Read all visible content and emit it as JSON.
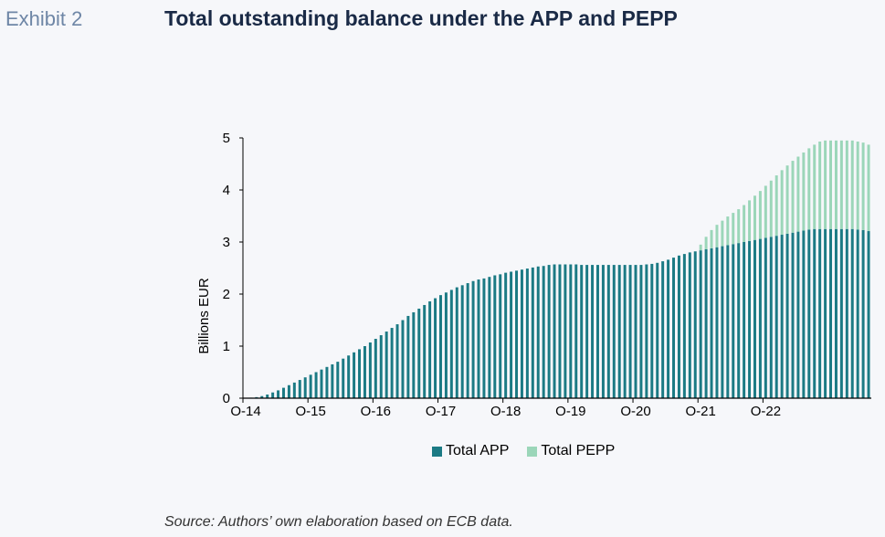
{
  "header": {
    "exhibit_label": "Exhibit 2",
    "title": "Total outstanding balance under the APP and PEPP"
  },
  "source_note": "Source: Authors’ own elaboration based on ECB data.",
  "colors": {
    "app": "#1b7a84",
    "pepp": "#9bd6b9",
    "axis": "#000000",
    "background": "#f6f7fa"
  },
  "chart_data": {
    "type": "bar",
    "stacked": true,
    "ylabel": "Billions EUR",
    "xlabel": "",
    "ylim": [
      0,
      5
    ],
    "y_ticks": [
      "0",
      "1",
      "2",
      "3",
      "4",
      "5"
    ],
    "x_tick_labels": [
      "O-14",
      "O-15",
      "O-16",
      "O-17",
      "O-18",
      "O-19",
      "O-20",
      "O-21",
      "O-22"
    ],
    "x_start": "2014-10",
    "x_end": "2023-06",
    "grid": false,
    "legend_position": "bottom",
    "series": [
      {
        "name": "Total APP",
        "color": "#1b7a84",
        "values": [
          0.0,
          0.01,
          0.02,
          0.04,
          0.07,
          0.11,
          0.15,
          0.2,
          0.25,
          0.3,
          0.35,
          0.4,
          0.45,
          0.5,
          0.55,
          0.6,
          0.65,
          0.7,
          0.76,
          0.82,
          0.88,
          0.94,
          1.0,
          1.07,
          1.14,
          1.21,
          1.28,
          1.35,
          1.42,
          1.5,
          1.58,
          1.65,
          1.72,
          1.79,
          1.86,
          1.92,
          1.98,
          2.03,
          2.08,
          2.13,
          2.17,
          2.21,
          2.25,
          2.28,
          2.3,
          2.33,
          2.36,
          2.38,
          2.41,
          2.43,
          2.45,
          2.47,
          2.49,
          2.51,
          2.53,
          2.54,
          2.56,
          2.57,
          2.57,
          2.57,
          2.57,
          2.57,
          2.56,
          2.56,
          2.56,
          2.56,
          2.56,
          2.56,
          2.56,
          2.56,
          2.56,
          2.56,
          2.56,
          2.56,
          2.57,
          2.58,
          2.6,
          2.63,
          2.66,
          2.7,
          2.74,
          2.77,
          2.8,
          2.82,
          2.84,
          2.86,
          2.88,
          2.9,
          2.92,
          2.94,
          2.96,
          2.98,
          3.0,
          3.02,
          3.04,
          3.06,
          3.08,
          3.1,
          3.12,
          3.14,
          3.16,
          3.18,
          3.2,
          3.22,
          3.24,
          3.25,
          3.25,
          3.25,
          3.25,
          3.25,
          3.25,
          3.25,
          3.25,
          3.24,
          3.23,
          3.21
        ]
      },
      {
        "name": "Total PEPP",
        "color": "#9bd6b9",
        "values": [
          0,
          0,
          0,
          0,
          0,
          0,
          0,
          0,
          0,
          0,
          0,
          0,
          0,
          0,
          0,
          0,
          0,
          0,
          0,
          0,
          0,
          0,
          0,
          0,
          0,
          0,
          0,
          0,
          0,
          0,
          0,
          0,
          0,
          0,
          0,
          0,
          0,
          0,
          0,
          0,
          0,
          0,
          0,
          0,
          0,
          0,
          0,
          0,
          0,
          0,
          0,
          0,
          0,
          0,
          0,
          0,
          0,
          0,
          0,
          0,
          0,
          0,
          0,
          0,
          0,
          0,
          0,
          0,
          0,
          0,
          0,
          0,
          0,
          0,
          0,
          0,
          0,
          0,
          0,
          0,
          0,
          0,
          0,
          0,
          0.11,
          0.24,
          0.35,
          0.43,
          0.49,
          0.55,
          0.6,
          0.65,
          0.71,
          0.78,
          0.85,
          0.92,
          1.0,
          1.08,
          1.16,
          1.24,
          1.31,
          1.38,
          1.44,
          1.5,
          1.56,
          1.62,
          1.68,
          1.7,
          1.7,
          1.7,
          1.7,
          1.7,
          1.7,
          1.69,
          1.68,
          1.66
        ]
      }
    ]
  }
}
